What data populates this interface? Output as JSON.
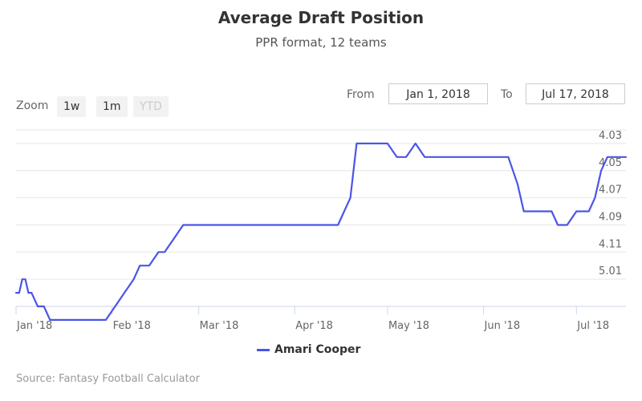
{
  "title": "Average Draft Position",
  "subtitle": "PPR format, 12 teams",
  "range_selector": {
    "zoom_label": "Zoom",
    "buttons": [
      "1w",
      "1m",
      "YTD"
    ],
    "from_label": "From",
    "from_value": "Jan 1, 2018",
    "to_label": "To",
    "to_value": "Jul 17, 2018"
  },
  "legend_label": "Amari Cooper",
  "credits": "Source: Fantasy Football Calculator",
  "colors": {
    "series": "#4b55e6",
    "grid": "#e6e6e6",
    "axis_line": "#ccd6eb"
  },
  "chart_data": {
    "type": "line",
    "title": "Average Draft Position",
    "subtitle": "PPR format, 12 teams",
    "y_reversed": true,
    "y_ticks": [
      "4.03",
      "4.05",
      "4.07",
      "4.09",
      "4.11",
      "5.01"
    ],
    "x_ticks": [
      "Jan '18",
      "Feb '18",
      "Mar '18",
      "Apr '18",
      "May '18",
      "Jun '18",
      "Jul '18"
    ],
    "x_range": [
      "2018-01-01",
      "2018-07-17"
    ],
    "series": [
      {
        "name": "Amari Cooper",
        "data": [
          [
            "2018-01-01",
            5.02
          ],
          [
            "2018-01-02",
            5.02
          ],
          [
            "2018-01-03",
            5.01
          ],
          [
            "2018-01-04",
            5.01
          ],
          [
            "2018-01-05",
            5.02
          ],
          [
            "2018-01-06",
            5.02
          ],
          [
            "2018-01-08",
            5.03
          ],
          [
            "2018-01-10",
            5.03
          ],
          [
            "2018-01-12",
            5.04
          ],
          [
            "2018-01-15",
            5.04
          ],
          [
            "2018-01-18",
            5.035
          ],
          [
            "2018-01-21",
            5.035
          ],
          [
            "2018-01-24",
            5.035
          ],
          [
            "2018-01-27",
            5.04
          ],
          [
            "2018-01-30",
            5.04
          ],
          [
            "2018-02-02",
            5.03
          ],
          [
            "2018-02-05",
            5.02
          ],
          [
            "2018-02-08",
            5.01
          ],
          [
            "2018-02-10",
            4.12
          ],
          [
            "2018-02-13",
            4.12
          ],
          [
            "2018-02-16",
            4.11
          ],
          [
            "2018-02-18",
            4.105
          ],
          [
            "2018-02-21",
            4.1
          ],
          [
            "2018-02-24",
            4.095
          ],
          [
            "2018-02-27",
            4.09
          ],
          [
            "2018-03-03",
            4.09
          ],
          [
            "2018-03-07",
            4.09
          ],
          [
            "2018-03-11",
            4.088
          ],
          [
            "2018-03-15",
            4.088
          ],
          [
            "2018-03-19",
            4.088
          ],
          [
            "2018-03-23",
            4.088
          ],
          [
            "2018-03-27",
            4.088
          ],
          [
            "2018-03-31",
            4.09
          ],
          [
            "2018-04-03",
            4.092
          ],
          [
            "2018-04-06",
            4.09
          ],
          [
            "2018-04-09",
            4.087
          ],
          [
            "2018-04-12",
            4.087
          ],
          [
            "2018-04-15",
            4.087
          ],
          [
            "2018-04-17",
            4.08
          ],
          [
            "2018-04-19",
            4.07
          ],
          [
            "2018-04-21",
            4.03
          ],
          [
            "2018-04-22",
            4.03
          ],
          [
            "2018-04-24",
            4.03
          ],
          [
            "2018-04-26",
            4.032
          ],
          [
            "2018-04-28",
            4.034
          ],
          [
            "2018-05-01",
            4.034
          ],
          [
            "2018-05-04",
            4.036
          ],
          [
            "2018-05-07",
            4.035
          ],
          [
            "2018-05-10",
            4.034
          ],
          [
            "2018-05-13",
            4.035
          ],
          [
            "2018-05-16",
            4.035
          ],
          [
            "2018-05-19",
            4.036
          ],
          [
            "2018-05-22",
            4.036
          ],
          [
            "2018-05-25",
            4.037
          ],
          [
            "2018-05-28",
            4.036
          ],
          [
            "2018-05-31",
            4.037
          ],
          [
            "2018-06-03",
            4.038
          ],
          [
            "2018-06-06",
            4.04
          ],
          [
            "2018-06-09",
            4.045
          ],
          [
            "2018-06-12",
            4.06
          ],
          [
            "2018-06-14",
            4.075
          ],
          [
            "2018-06-17",
            4.075
          ],
          [
            "2018-06-20",
            4.078
          ],
          [
            "2018-06-23",
            4.083
          ],
          [
            "2018-06-25",
            4.088
          ],
          [
            "2018-06-28",
            4.089
          ],
          [
            "2018-07-01",
            4.085
          ],
          [
            "2018-07-03",
            4.085
          ],
          [
            "2018-07-05",
            4.078
          ],
          [
            "2018-07-07",
            4.068
          ],
          [
            "2018-07-09",
            4.046
          ],
          [
            "2018-07-11",
            4.042
          ],
          [
            "2018-07-13",
            4.042
          ],
          [
            "2018-07-15",
            4.038
          ],
          [
            "2018-07-17",
            4.038
          ]
        ]
      }
    ]
  }
}
